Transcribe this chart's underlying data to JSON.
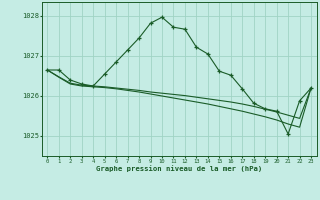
{
  "background_color": "#c5ece4",
  "grid_color": "#a0d4c4",
  "line_color": "#1a5c28",
  "title": "Graphe pression niveau de la mer (hPa)",
  "xlim": [
    -0.5,
    23.5
  ],
  "ylim": [
    1024.5,
    1028.35
  ],
  "yticks": [
    1025,
    1026,
    1027,
    1028
  ],
  "xticks": [
    0,
    1,
    2,
    3,
    4,
    5,
    6,
    7,
    8,
    9,
    10,
    11,
    12,
    13,
    14,
    15,
    16,
    17,
    18,
    19,
    20,
    21,
    22,
    23
  ],
  "main_x": [
    0,
    1,
    2,
    3,
    4,
    5,
    6,
    7,
    8,
    9,
    10,
    11,
    12,
    13,
    14,
    15,
    16,
    17,
    18,
    19,
    20,
    21,
    22,
    23
  ],
  "main_y": [
    1026.65,
    1026.65,
    1026.4,
    1026.3,
    1026.25,
    1026.55,
    1026.85,
    1027.15,
    1027.45,
    1027.82,
    1027.97,
    1027.72,
    1027.67,
    1027.22,
    1027.05,
    1026.62,
    1026.52,
    1026.18,
    1025.82,
    1025.68,
    1025.62,
    1025.05,
    1025.88,
    1026.2
  ],
  "flat1_x": [
    0,
    1,
    2,
    3,
    4,
    5,
    6,
    7,
    8,
    9,
    10,
    11,
    12,
    13,
    14,
    15,
    16,
    17,
    18,
    19,
    20,
    21,
    22,
    23
  ],
  "flat1_y": [
    1026.65,
    1026.48,
    1026.32,
    1026.27,
    1026.25,
    1026.23,
    1026.2,
    1026.17,
    1026.14,
    1026.1,
    1026.07,
    1026.04,
    1026.01,
    1025.97,
    1025.93,
    1025.89,
    1025.85,
    1025.8,
    1025.74,
    1025.67,
    1025.6,
    1025.52,
    1025.44,
    1026.2
  ],
  "flat2_x": [
    0,
    1,
    2,
    3,
    4,
    5,
    6,
    7,
    8,
    9,
    10,
    11,
    12,
    13,
    14,
    15,
    16,
    17,
    18,
    19,
    20,
    21,
    22,
    23
  ],
  "flat2_y": [
    1026.65,
    1026.47,
    1026.3,
    1026.25,
    1026.23,
    1026.21,
    1026.18,
    1026.14,
    1026.1,
    1026.05,
    1026.0,
    1025.95,
    1025.9,
    1025.85,
    1025.8,
    1025.74,
    1025.68,
    1025.62,
    1025.55,
    1025.48,
    1025.4,
    1025.3,
    1025.22,
    1026.2
  ],
  "figwidth": 3.2,
  "figheight": 2.0,
  "dpi": 100
}
